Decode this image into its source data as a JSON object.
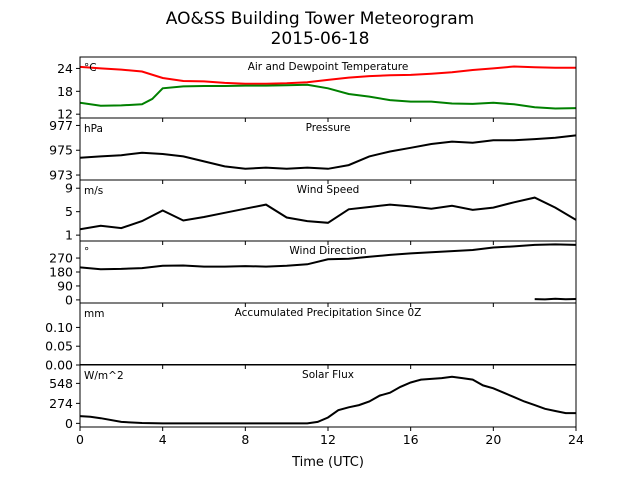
{
  "figure": {
    "title": "AO&SS Building Tower Meteorogram",
    "subtitle": "2015-06-18",
    "xlabel": "Time (UTC)"
  },
  "chart_data": [
    {
      "type": "line",
      "title": "Air and Dewpoint Temperature",
      "unit": "°C",
      "xlim": [
        0,
        24
      ],
      "ylim": [
        11,
        27
      ],
      "yticks": [
        12,
        18,
        24
      ],
      "xticks": [
        0,
        4,
        8,
        12,
        16,
        20,
        24
      ],
      "series": [
        {
          "color": "#ff0000",
          "x": [
            0,
            1,
            2,
            3,
            4,
            5,
            6,
            7,
            8,
            9,
            10,
            11,
            12,
            13,
            14,
            15,
            16,
            17,
            18,
            19,
            20,
            21,
            22,
            23,
            24
          ],
          "y": [
            24.4,
            24.0,
            23.7,
            23.2,
            21.5,
            20.7,
            20.6,
            20.2,
            20.0,
            20.0,
            20.1,
            20.4,
            21.0,
            21.6,
            22.0,
            22.2,
            22.3,
            22.6,
            23.0,
            23.6,
            24.0,
            24.5,
            24.3,
            24.2,
            24.2
          ]
        },
        {
          "color": "#008000",
          "x": [
            0,
            1,
            2,
            3,
            3.5,
            4,
            5,
            6,
            7,
            8,
            9,
            10,
            11,
            12,
            13,
            14,
            15,
            16,
            17,
            18,
            19,
            20,
            21,
            22,
            23,
            24
          ],
          "y": [
            15.0,
            14.2,
            14.3,
            14.6,
            16.0,
            18.8,
            19.3,
            19.4,
            19.4,
            19.5,
            19.5,
            19.6,
            19.7,
            18.8,
            17.3,
            16.6,
            15.7,
            15.3,
            15.3,
            14.8,
            14.7,
            15.0,
            14.6,
            13.8,
            13.5,
            13.6
          ]
        }
      ]
    },
    {
      "type": "line",
      "title": "Pressure",
      "unit": "hPa",
      "xlim": [
        0,
        24
      ],
      "ylim": [
        972.6,
        977.6
      ],
      "yticks": [
        973,
        975,
        977
      ],
      "series": [
        {
          "color": "#000000",
          "x": [
            0,
            1,
            2,
            3,
            4,
            5,
            6,
            7,
            8,
            9,
            10,
            11,
            12,
            13,
            14,
            15,
            16,
            17,
            18,
            19,
            20,
            21,
            22,
            23,
            24
          ],
          "y": [
            974.4,
            974.5,
            974.6,
            974.8,
            974.7,
            974.5,
            974.1,
            973.7,
            973.5,
            973.6,
            973.5,
            973.6,
            973.5,
            973.8,
            974.5,
            974.9,
            975.2,
            975.5,
            975.7,
            975.6,
            975.8,
            975.8,
            975.9,
            976.0,
            976.2
          ]
        }
      ]
    },
    {
      "type": "line",
      "title": "Wind Speed",
      "unit": "m/s",
      "xlim": [
        0,
        24
      ],
      "ylim": [
        0,
        10.4
      ],
      "yticks": [
        1,
        5,
        9
      ],
      "series": [
        {
          "color": "#000000",
          "x": [
            0,
            1,
            2,
            3,
            4,
            5,
            6,
            7,
            8,
            9,
            10,
            11,
            12,
            13,
            14,
            15,
            16,
            17,
            18,
            19,
            20,
            21,
            22,
            23,
            24
          ],
          "y": [
            2.0,
            2.6,
            2.2,
            3.4,
            5.2,
            3.5,
            4.1,
            4.8,
            5.5,
            6.2,
            4.0,
            3.4,
            3.1,
            5.4,
            5.8,
            6.2,
            5.9,
            5.5,
            6.0,
            5.3,
            5.7,
            6.6,
            7.4,
            5.7,
            3.6
          ]
        }
      ]
    },
    {
      "type": "line",
      "title": "Wind Direction",
      "unit": "°",
      "xlim": [
        0,
        24
      ],
      "ylim": [
        -20,
        380
      ],
      "yticks": [
        0,
        90,
        180,
        270
      ],
      "series": [
        {
          "color": "#000000",
          "x": [
            0,
            1,
            2,
            3,
            4,
            5,
            6,
            7,
            8,
            9,
            10,
            11,
            12,
            13,
            14,
            15,
            16,
            17,
            18,
            19,
            20,
            21,
            22,
            23,
            24
          ],
          "y": [
            210,
            198,
            200,
            205,
            220,
            222,
            215,
            215,
            218,
            215,
            220,
            230,
            262,
            265,
            278,
            290,
            300,
            308,
            315,
            322,
            338,
            345,
            355,
            358,
            355
          ]
        },
        {
          "color": "#000000",
          "x": [
            22,
            22.5,
            23,
            23.5,
            24
          ],
          "y": [
            5,
            3,
            8,
            4,
            6
          ]
        }
      ]
    },
    {
      "type": "line",
      "title": "Accumulated Precipitation Since 0Z",
      "unit": "mm",
      "xlim": [
        0,
        24
      ],
      "ylim": [
        0,
        0.165
      ],
      "yticks": [
        0.0,
        0.05,
        0.1
      ],
      "series": [
        {
          "color": "#000000",
          "x": [
            0,
            24
          ],
          "y": [
            0,
            0
          ]
        }
      ]
    },
    {
      "type": "line",
      "title": "Solar Flux",
      "unit": "W/m^2",
      "xlim": [
        0,
        24
      ],
      "ylim": [
        -50,
        800
      ],
      "yticks": [
        0,
        274,
        548
      ],
      "series": [
        {
          "color": "#000000",
          "x": [
            0,
            0.5,
            1,
            2,
            3,
            4,
            5,
            6,
            7,
            8,
            9,
            10,
            11,
            11.5,
            12,
            12.5,
            13,
            13.5,
            14,
            14.5,
            15,
            15.5,
            16,
            16.5,
            17,
            17.5,
            18,
            18.5,
            19,
            19.5,
            20,
            20.5,
            21,
            21.5,
            22,
            22.5,
            23,
            23.5,
            24
          ],
          "y": [
            100,
            90,
            70,
            20,
            5,
            0,
            0,
            0,
            0,
            0,
            0,
            0,
            0,
            20,
            80,
            180,
            220,
            250,
            300,
            380,
            420,
            500,
            560,
            600,
            610,
            620,
            640,
            620,
            600,
            520,
            480,
            420,
            360,
            300,
            250,
            200,
            170,
            140,
            140
          ]
        }
      ]
    }
  ]
}
